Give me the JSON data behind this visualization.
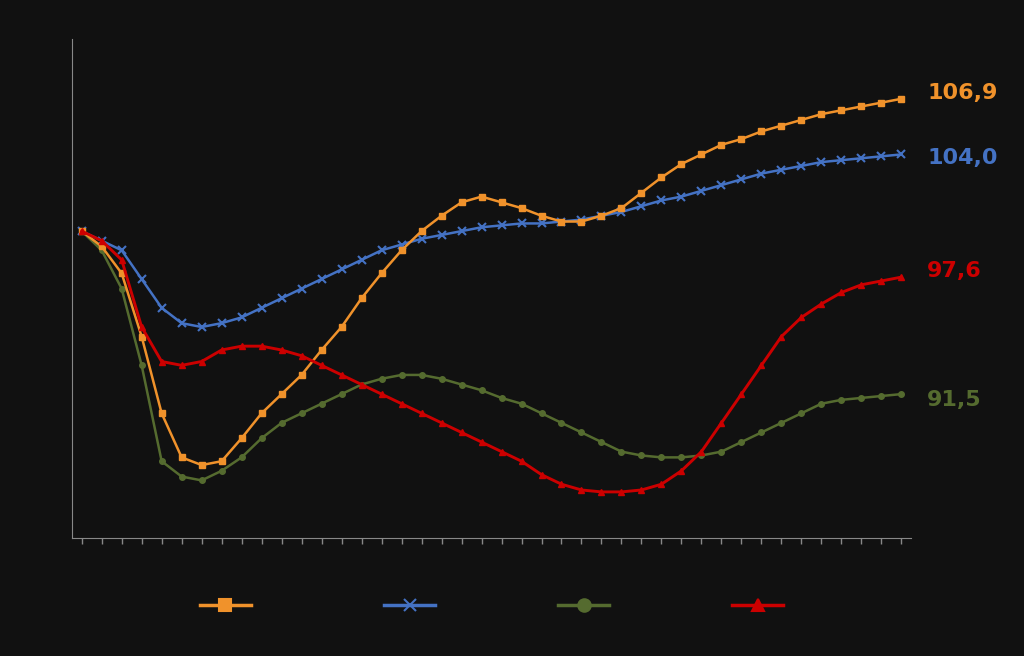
{
  "background_color": "#111111",
  "plot_bg_color": "#111111",
  "label_colors": {
    "orange": "#F0922B",
    "blue": "#4472C4",
    "green": "#556B2F",
    "red": "#CC0000"
  },
  "end_labels": {
    "orange": "106,9",
    "blue": "104,0",
    "red": "97,6",
    "green": "91,5"
  },
  "orange": [
    100.0,
    99.2,
    97.8,
    94.5,
    90.5,
    88.2,
    87.8,
    88.0,
    89.2,
    90.5,
    91.5,
    92.5,
    93.8,
    95.0,
    96.5,
    97.8,
    99.0,
    100.0,
    100.8,
    101.5,
    101.8,
    101.5,
    101.2,
    100.8,
    100.5,
    100.5,
    100.8,
    101.2,
    102.0,
    102.8,
    103.5,
    104.0,
    104.5,
    104.8,
    105.2,
    105.5,
    105.8,
    106.1,
    106.3,
    106.5,
    106.7,
    106.9
  ],
  "blue": [
    100.0,
    99.5,
    99.0,
    97.5,
    96.0,
    95.2,
    95.0,
    95.2,
    95.5,
    96.0,
    96.5,
    97.0,
    97.5,
    98.0,
    98.5,
    99.0,
    99.3,
    99.6,
    99.8,
    100.0,
    100.2,
    100.3,
    100.4,
    100.4,
    100.5,
    100.6,
    100.8,
    101.0,
    101.3,
    101.6,
    101.8,
    102.1,
    102.4,
    102.7,
    103.0,
    103.2,
    103.4,
    103.6,
    103.7,
    103.8,
    103.9,
    104.0
  ],
  "green": [
    100.0,
    99.0,
    97.0,
    93.0,
    88.0,
    87.2,
    87.0,
    87.5,
    88.2,
    89.2,
    90.0,
    90.5,
    91.0,
    91.5,
    92.0,
    92.3,
    92.5,
    92.5,
    92.3,
    92.0,
    91.7,
    91.3,
    91.0,
    90.5,
    90.0,
    89.5,
    89.0,
    88.5,
    88.3,
    88.2,
    88.2,
    88.3,
    88.5,
    89.0,
    89.5,
    90.0,
    90.5,
    91.0,
    91.2,
    91.3,
    91.4,
    91.5
  ],
  "red": [
    100.0,
    99.5,
    98.5,
    95.0,
    93.2,
    93.0,
    93.2,
    93.8,
    94.0,
    94.0,
    93.8,
    93.5,
    93.0,
    92.5,
    92.0,
    91.5,
    91.0,
    90.5,
    90.0,
    89.5,
    89.0,
    88.5,
    88.0,
    87.3,
    86.8,
    86.5,
    86.4,
    86.4,
    86.5,
    86.8,
    87.5,
    88.5,
    90.0,
    91.5,
    93.0,
    94.5,
    95.5,
    96.2,
    96.8,
    97.2,
    97.4,
    97.6
  ]
}
